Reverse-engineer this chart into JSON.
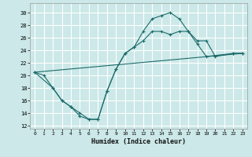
{
  "xlabel": "Humidex (Indice chaleur)",
  "background_color": "#cce8e8",
  "grid_color": "#ffffff",
  "line_color": "#1b6b6b",
  "xlim": [
    -0.5,
    23.5
  ],
  "ylim": [
    11.5,
    31.5
  ],
  "xticks": [
    0,
    1,
    2,
    3,
    4,
    5,
    6,
    7,
    8,
    9,
    10,
    11,
    12,
    13,
    14,
    15,
    16,
    17,
    18,
    19,
    20,
    21,
    22,
    23
  ],
  "yticks": [
    12,
    14,
    16,
    18,
    20,
    22,
    24,
    26,
    28,
    30
  ],
  "series": [
    {
      "x": [
        0,
        1,
        2,
        3,
        4,
        5,
        6,
        7,
        8,
        9,
        10,
        11,
        12,
        13,
        14,
        15,
        16,
        17,
        18,
        19,
        22,
        23
      ],
      "y": [
        20.5,
        20.0,
        18.0,
        16.0,
        15.0,
        13.5,
        13.0,
        13.0,
        17.5,
        21.0,
        23.5,
        24.5,
        27.0,
        29.0,
        29.5,
        30.0,
        29.0,
        27.0,
        25.0,
        23.0,
        23.5,
        23.5
      ],
      "marker": true
    },
    {
      "x": [
        0,
        2,
        3,
        4,
        5,
        6,
        7,
        8,
        9,
        10,
        11,
        12,
        13,
        14,
        15,
        16,
        17,
        18,
        19,
        20,
        22,
        23
      ],
      "y": [
        20.5,
        18.0,
        16.0,
        15.0,
        14.0,
        13.0,
        13.0,
        17.5,
        21.0,
        23.5,
        24.5,
        25.5,
        27.0,
        27.0,
        26.5,
        27.0,
        27.0,
        25.5,
        25.5,
        23.0,
        23.5,
        23.5
      ],
      "marker": true
    },
    {
      "x": [
        0,
        23
      ],
      "y": [
        20.5,
        23.5
      ],
      "marker": false
    }
  ]
}
